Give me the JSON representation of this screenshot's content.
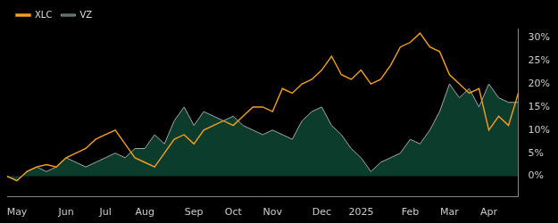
{
  "chart_data": {
    "type": "line",
    "categories": [
      null,
      "May",
      null,
      null,
      null,
      null,
      "Jun",
      null,
      null,
      null,
      "Jul",
      null,
      null,
      null,
      "Aug",
      null,
      null,
      null,
      null,
      "Sep",
      null,
      null,
      null,
      "Oct",
      null,
      null,
      null,
      "Nov",
      null,
      null,
      null,
      null,
      "Dec",
      null,
      null,
      null,
      "2025",
      null,
      null,
      null,
      null,
      "Feb",
      null,
      null,
      null,
      "Mar",
      null,
      null,
      null,
      "Apr",
      null,
      null,
      null
    ],
    "series": [
      {
        "name": "VZ",
        "color": "#a6a6a6",
        "type": "area",
        "values": [
          0,
          -1,
          1,
          2,
          1,
          2,
          4,
          3,
          2,
          3,
          4,
          5,
          4,
          6,
          6,
          9,
          7,
          12,
          15,
          11,
          14,
          13,
          12,
          13,
          11,
          10,
          9,
          10,
          9,
          8,
          12,
          14,
          15,
          11,
          9,
          6,
          4,
          1,
          3,
          4,
          5,
          8,
          7,
          10,
          14,
          20,
          17,
          19,
          15,
          20,
          17,
          16,
          16
        ]
      },
      {
        "name": "XLC",
        "color": "#f7a01c",
        "type": "line",
        "values": [
          0,
          -1,
          1,
          2,
          2.5,
          2,
          4,
          5,
          6,
          8,
          9,
          10,
          7,
          4,
          3,
          2,
          5,
          8,
          9,
          7,
          10,
          11,
          12,
          11,
          13,
          15,
          15,
          14,
          19,
          18,
          20,
          21,
          23,
          26,
          22,
          21,
          23,
          20,
          21,
          24,
          28,
          29,
          31,
          28,
          27,
          22,
          20,
          18,
          19,
          10,
          13,
          11,
          18
        ]
      }
    ],
    "ylim": [
      -4.5,
      32
    ],
    "yticks": [
      {
        "value": 0,
        "label": "0%"
      },
      {
        "value": 5,
        "label": "5%"
      },
      {
        "value": 10,
        "label": "10%"
      },
      {
        "value": 15,
        "label": "15%"
      },
      {
        "value": 20,
        "label": "20%"
      },
      {
        "value": 25,
        "label": "25%"
      },
      {
        "value": 30,
        "label": "30%"
      }
    ],
    "grid": false,
    "legend": "upper left"
  }
}
